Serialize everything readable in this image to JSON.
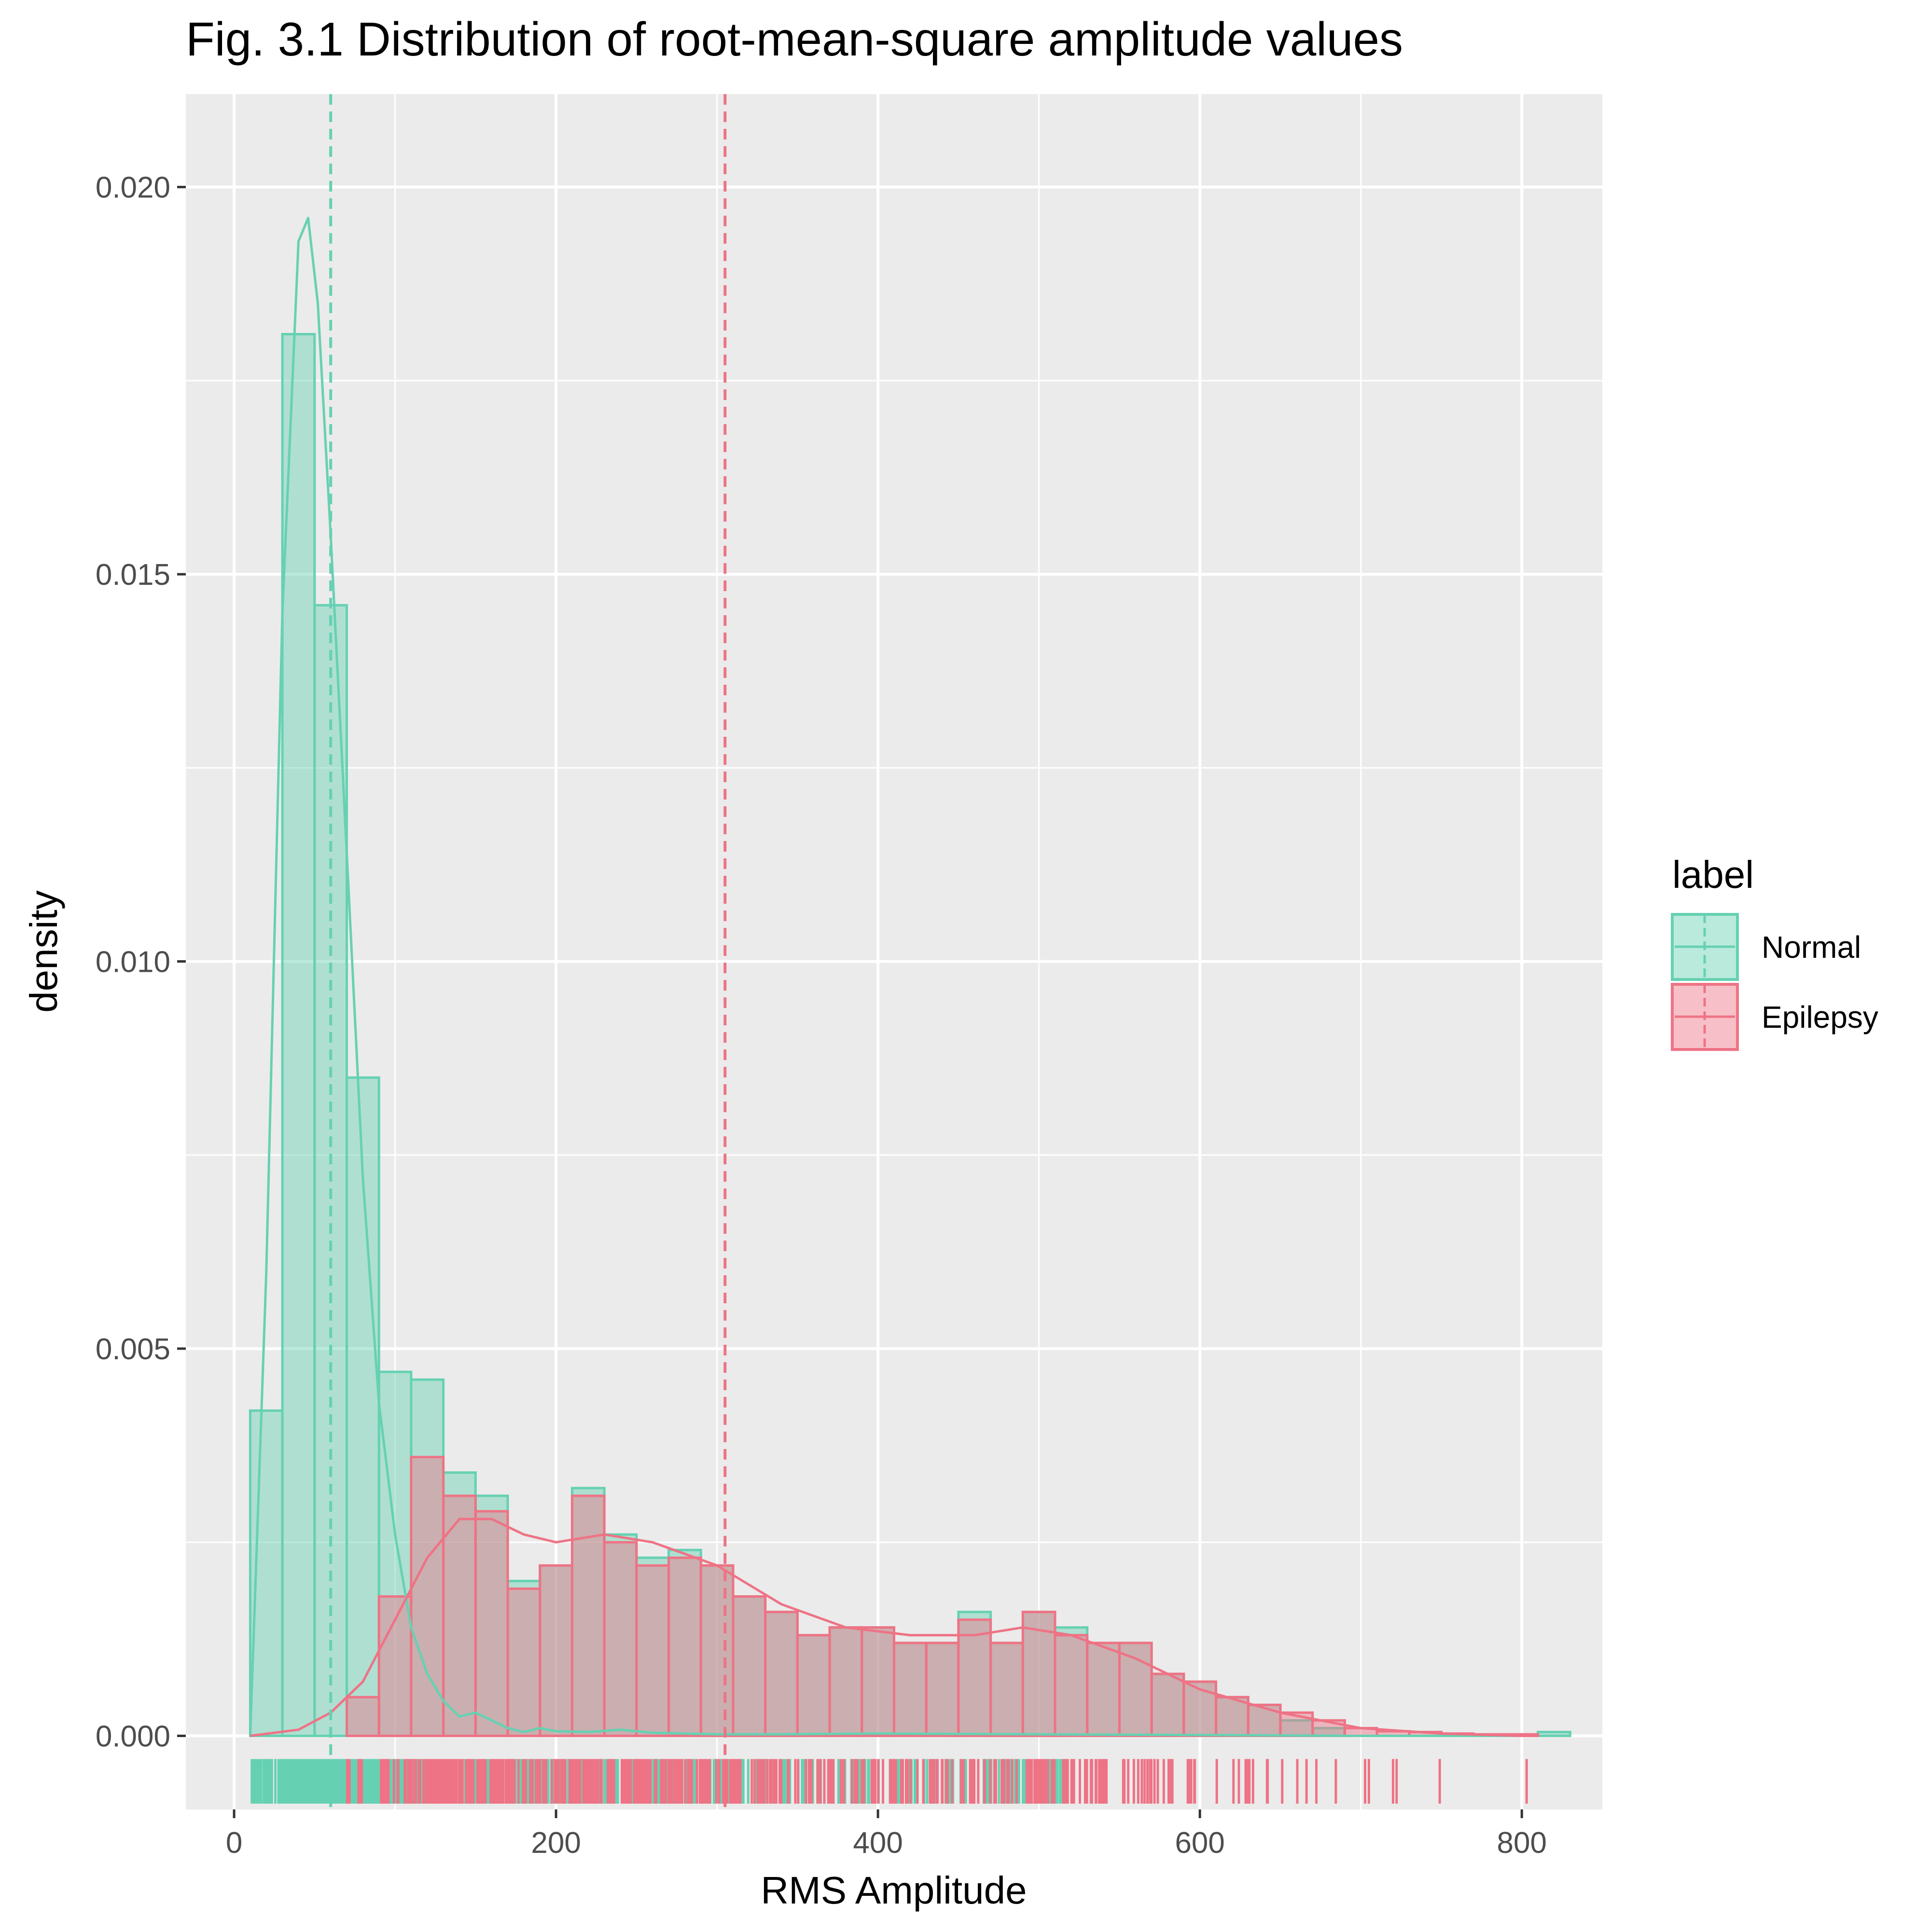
{
  "chart_data": {
    "type": "histogram",
    "title": "Fig. 3.1 Distribution of root-mean-square amplitude values",
    "xlabel": "RMS Amplitude",
    "ylabel": "density",
    "xlim": [
      -30,
      850
    ],
    "ylim": [
      -0.00095,
      0.0212
    ],
    "x_ticks": [
      0,
      200,
      400,
      600,
      800
    ],
    "x_tick_labels": [
      "0",
      "200",
      "400",
      "600",
      "800"
    ],
    "y_ticks": [
      0.0,
      0.005,
      0.01,
      0.015,
      0.02
    ],
    "y_tick_labels": [
      "0.000",
      "0.005",
      "0.010",
      "0.015",
      "0.020"
    ],
    "grid": true,
    "legend": {
      "title": "label",
      "position": "right",
      "entries": [
        "Normal",
        "Epilepsy"
      ]
    },
    "colors": {
      "Normal": "#66D1B2",
      "Epilepsy": "#EE7385",
      "panel": "#EBEBEB",
      "grid": "#FFFFFF"
    },
    "bins": {
      "start": 10,
      "width": 20
    },
    "series": [
      {
        "name": "Normal",
        "mean": 60,
        "histogram": [
          0.0042,
          0.0181,
          0.0146,
          0.0085,
          0.0047,
          0.0046,
          0.0034,
          0.0031,
          0.002,
          0.0022,
          0.0032,
          0.0026,
          0.0023,
          0.0024,
          0.0022,
          0.0018,
          0.0016,
          0.0013,
          0.0014,
          0.0014,
          0.0012,
          0.0012,
          0.0016,
          0.0012,
          0.0016,
          0.0014,
          0.0012,
          0.0012,
          0.0008,
          0.0007,
          0.0005,
          0.0004,
          0.0002,
          0.0001,
          0.0,
          0.0,
          0.0,
          0.0,
          0.0,
          0.0,
          5e-05
        ],
        "density_curve": {
          "x": [
            10,
            20,
            30,
            40,
            46,
            52,
            60,
            70,
            80,
            90,
            100,
            110,
            120,
            130,
            140,
            150,
            160,
            170,
            180,
            190,
            200,
            220,
            240,
            260,
            280,
            300,
            340,
            400,
            500,
            600,
            700,
            800
          ],
          "y": [
            0.0,
            0.006,
            0.0145,
            0.0193,
            0.0196,
            0.0185,
            0.0155,
            0.0114,
            0.0072,
            0.0043,
            0.0026,
            0.0014,
            0.0008,
            0.00045,
            0.00025,
            0.0003,
            0.0002,
            0.0001,
            5e-05,
            0.0001,
            6e-05,
            5e-05,
            8e-05,
            4e-05,
            3e-05,
            2e-05,
            2e-05,
            3e-05,
            2e-05,
            1e-05,
            0.0,
            0.0
          ]
        }
      },
      {
        "name": "Epilepsy",
        "mean": 305,
        "histogram": [
          0.0,
          0.0,
          0.0,
          0.0005,
          0.0018,
          0.0036,
          0.0031,
          0.0029,
          0.0019,
          0.0022,
          0.0031,
          0.0025,
          0.0022,
          0.0023,
          0.0022,
          0.0018,
          0.0016,
          0.0013,
          0.0014,
          0.0014,
          0.0012,
          0.0012,
          0.0015,
          0.0012,
          0.0016,
          0.0013,
          0.0012,
          0.0012,
          0.0008,
          0.0007,
          0.0005,
          0.0004,
          0.0003,
          0.0002,
          0.0001,
          6e-05,
          5e-05,
          3e-05,
          2e-05,
          2e-05,
          0.0
        ],
        "density_curve": {
          "x": [
            10,
            40,
            60,
            80,
            100,
            120,
            140,
            160,
            180,
            200,
            230,
            260,
            300,
            340,
            380,
            420,
            460,
            490,
            520,
            560,
            600,
            650,
            700,
            750,
            800
          ],
          "y": [
            0.0,
            8e-05,
            0.0003,
            0.0007,
            0.0015,
            0.0023,
            0.0028,
            0.0028,
            0.0026,
            0.0025,
            0.0026,
            0.0025,
            0.0022,
            0.0017,
            0.0014,
            0.0013,
            0.0013,
            0.0014,
            0.0013,
            0.001,
            0.0006,
            0.0003,
            0.0001,
            3e-05,
            0.0
          ]
        }
      }
    ],
    "rug": {
      "Normal_range": [
        10,
        520
      ],
      "Epilepsy_range": [
        30,
        800
      ]
    }
  }
}
